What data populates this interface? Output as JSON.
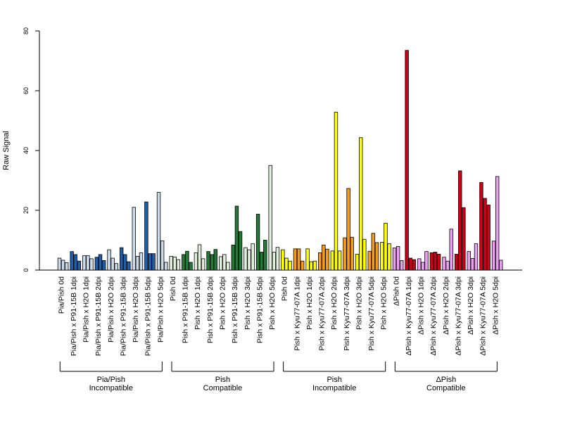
{
  "chart_data": {
    "type": "bar",
    "title": "",
    "xlabel": "",
    "ylabel": "Raw Signal",
    "ylim": [
      0,
      80
    ],
    "yticks": [
      0,
      20,
      40,
      60,
      80
    ],
    "grid": false,
    "categories": [
      "Pia/Pish 0d",
      "Pia/Pish x P91-15B 1dpi",
      "Pia/Pish x H2O 1dpi",
      "Pia/Pish x P91-15B 2dpi",
      "Pia/Pish x H2O 2dpi",
      "Pia/Pish x P91-15B 3dpi",
      "Pia/Pish x H2O 3dpi",
      "Pia/Pish x P91-15B 5dpi",
      "Pia/Pish x H2O 5dpi",
      "Pish 0d",
      "Pish x P91-15B 1dpi",
      "Pish x H2O 1dpi",
      "Pish x P91-15B 2dpi",
      "Pish x H2O 2dpi",
      "Pish x P91-15B 3dpi",
      "Pish x H2O 3dpi",
      "Pish x P91-15B 5dpi",
      "Pish x H2O 5dpi",
      "Pish 0d",
      "Pish x Kyu77-07A 1dpi",
      "Pish x H2O 1dpi",
      "Pish x Kyu77-07A 2dpi",
      "Pish x H2O 2dpi",
      "Pish x Kyu77-07A 3dpi",
      "Pish x H2O 3dpi",
      "Pish x Kyu77-07A 5dpi",
      "Pish x H2O 5dpi",
      "ΔPish 0d",
      "ΔPish x Kyu77-07A 1dpi",
      "ΔPish x H2O 1dpi",
      "ΔPish x Kyu77-07A 2dpi",
      "ΔPish x H2O 2dpi",
      "ΔPish x Kyu77-07A 3dpi",
      "ΔPish x H2O 3dpi",
      "ΔPish x Kyu77-07A 5dpi",
      "ΔPish x H2O 5dpi"
    ],
    "values": [
      [
        4,
        3.3,
        2.5
      ],
      [
        6.2,
        5.2,
        3
      ],
      [
        4.8,
        4.8,
        3.8
      ],
      [
        4.3,
        5.2,
        3.2
      ],
      [
        6.8,
        4,
        2.2
      ],
      [
        7.5,
        5.2,
        2.8
      ],
      [
        21,
        4.6,
        5.8
      ],
      [
        22.8,
        5.5,
        5.5
      ],
      [
        26,
        9.8,
        2.6
      ],
      [
        4.6,
        4.4,
        3.5
      ],
      [
        5.2,
        6.3,
        2.6
      ],
      [
        5.8,
        8.5,
        3.8
      ],
      [
        6.2,
        5.2,
        6.9
      ],
      [
        4.5,
        5.2,
        2.6
      ],
      [
        8.4,
        21.4,
        12.9
      ],
      [
        7.5,
        6.8,
        8.8
      ],
      [
        18.7,
        6,
        10
      ],
      [
        35,
        6,
        7.6
      ],
      [
        6.8,
        4,
        3
      ],
      [
        7.1,
        7.1,
        3
      ],
      [
        7.1,
        2.8,
        3
      ],
      [
        5.8,
        8.4,
        7
      ],
      [
        6.4,
        52.8,
        6.4
      ],
      [
        10.8,
        27.3,
        11
      ],
      [
        5.3,
        44.3,
        10.3
      ],
      [
        6.3,
        12.3,
        9.2
      ],
      [
        9.3,
        15.7,
        8.8
      ],
      [
        7.4,
        7.9,
        3.2
      ],
      [
        73.5,
        4,
        3.5
      ],
      [
        3.8,
        2.6,
        6.2
      ],
      [
        5.8,
        6,
        5.3
      ],
      [
        4.3,
        3,
        13.7
      ],
      [
        5.3,
        33.2,
        20.9
      ],
      [
        6.2,
        3.9,
        8.8
      ],
      [
        29.3,
        24,
        21.8
      ],
      [
        9.7,
        31.3,
        3.3
      ]
    ],
    "colors": {
      "pale_blue": "#ccdbe9",
      "dark_blue": "#1f5fa9",
      "pale_green": "#e1f0dc",
      "dark_green": "#217a35",
      "yellow": "#ffff00",
      "orange": "#f59c1a",
      "dark_red": "#cc0019",
      "light_pink": "#eb9ff0"
    },
    "category_colors": [
      "pale_blue",
      "dark_blue",
      "pale_blue",
      "dark_blue",
      "pale_blue",
      "dark_blue",
      "pale_blue",
      "dark_blue",
      "pale_blue",
      "pale_green",
      "dark_green",
      "pale_green",
      "dark_green",
      "pale_green",
      "dark_green",
      "pale_green",
      "dark_green",
      "pale_green",
      "yellow",
      "orange",
      "yellow",
      "orange",
      "yellow",
      "orange",
      "yellow",
      "orange",
      "yellow",
      "light_pink",
      "dark_red",
      "light_pink",
      "dark_red",
      "light_pink",
      "dark_red",
      "light_pink",
      "dark_red",
      "light_pink"
    ],
    "groups": [
      {
        "line1": "Pia/Pish",
        "line2": "Incompatible",
        "start": 0,
        "end": 8
      },
      {
        "line1": "Pish",
        "line2": "Compatible",
        "start": 9,
        "end": 17
      },
      {
        "line1": "Pish",
        "line2": "Incompatible",
        "start": 18,
        "end": 26
      },
      {
        "line1": "ΔPish",
        "line2": "Compatible",
        "start": 27,
        "end": 35
      }
    ]
  }
}
